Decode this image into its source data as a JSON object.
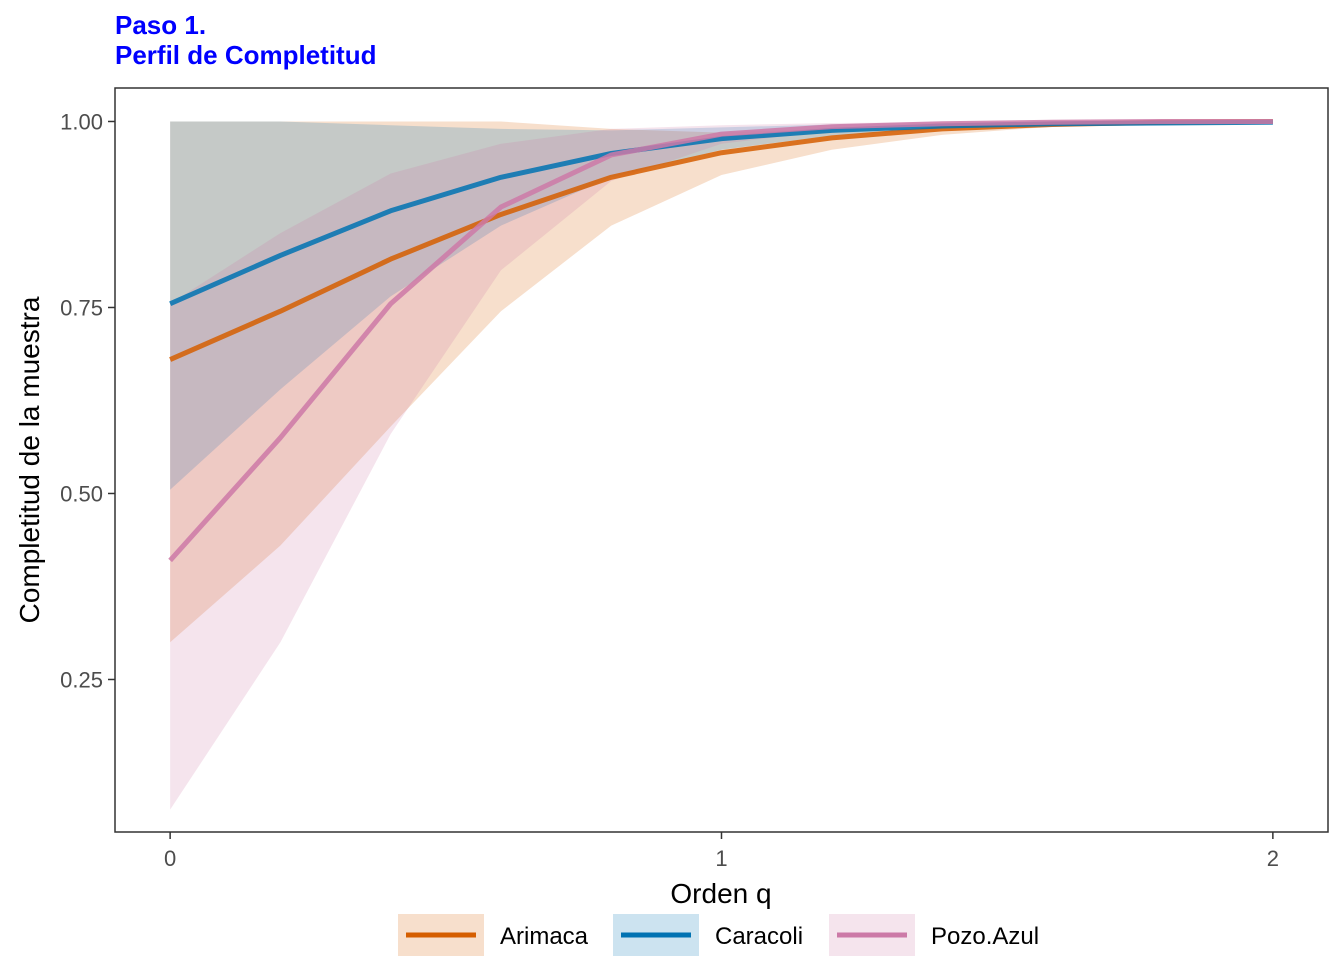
{
  "title_line1": "Paso 1.",
  "title_line2": "Perfil de Completitud",
  "chart_data": {
    "type": "line",
    "xlabel": "Orden q",
    "ylabel": "Completitud de la muestra",
    "xlim": [
      -0.1,
      2.1
    ],
    "ylim": [
      0.045,
      1.045
    ],
    "x_ticks": [
      0,
      1,
      2
    ],
    "x_tick_labels": [
      "0",
      "1",
      "2"
    ],
    "y_ticks": [
      0.25,
      0.5,
      0.75,
      1.0
    ],
    "y_tick_labels": [
      "0.25",
      "0.50",
      "0.75",
      "1.00"
    ],
    "grid": false,
    "legend_position": "bottom",
    "x": [
      0,
      0.2,
      0.4,
      0.6,
      0.8,
      1.0,
      1.2,
      1.4,
      1.6,
      1.8,
      2.0
    ],
    "series": [
      {
        "name": "Arimaca",
        "color": "#D55E00",
        "values": [
          0.68,
          0.745,
          0.815,
          0.875,
          0.925,
          0.958,
          0.978,
          0.99,
          0.996,
          0.999,
          1.0
        ],
        "lower": [
          0.3,
          0.43,
          0.59,
          0.745,
          0.86,
          0.928,
          0.962,
          0.982,
          0.993,
          0.998,
          0.999
        ],
        "upper": [
          1.0,
          1.0,
          1.0,
          1.0,
          0.99,
          0.985,
          0.99,
          0.996,
          0.999,
          1.0,
          1.0
        ]
      },
      {
        "name": "Caracoli",
        "color": "#0072B2",
        "values": [
          0.755,
          0.82,
          0.88,
          0.925,
          0.957,
          0.977,
          0.988,
          0.994,
          0.997,
          0.998,
          0.999
        ],
        "lower": [
          0.505,
          0.64,
          0.765,
          0.86,
          0.925,
          0.962,
          0.981,
          0.99,
          0.995,
          0.997,
          0.998
        ],
        "upper": [
          1.0,
          1.0,
          0.995,
          0.99,
          0.988,
          0.992,
          0.996,
          0.998,
          0.999,
          1.0,
          1.0
        ]
      },
      {
        "name": "Pozo.Azul",
        "color": "#CC79A7",
        "values": [
          0.41,
          0.575,
          0.755,
          0.885,
          0.955,
          0.983,
          0.993,
          0.997,
          0.999,
          1.0,
          1.0
        ],
        "lower": [
          0.075,
          0.3,
          0.58,
          0.8,
          0.92,
          0.97,
          0.988,
          0.995,
          0.998,
          0.999,
          1.0
        ],
        "upper": [
          0.755,
          0.85,
          0.93,
          0.97,
          0.99,
          0.995,
          0.998,
          0.999,
          1.0,
          1.0,
          1.0
        ]
      }
    ]
  }
}
